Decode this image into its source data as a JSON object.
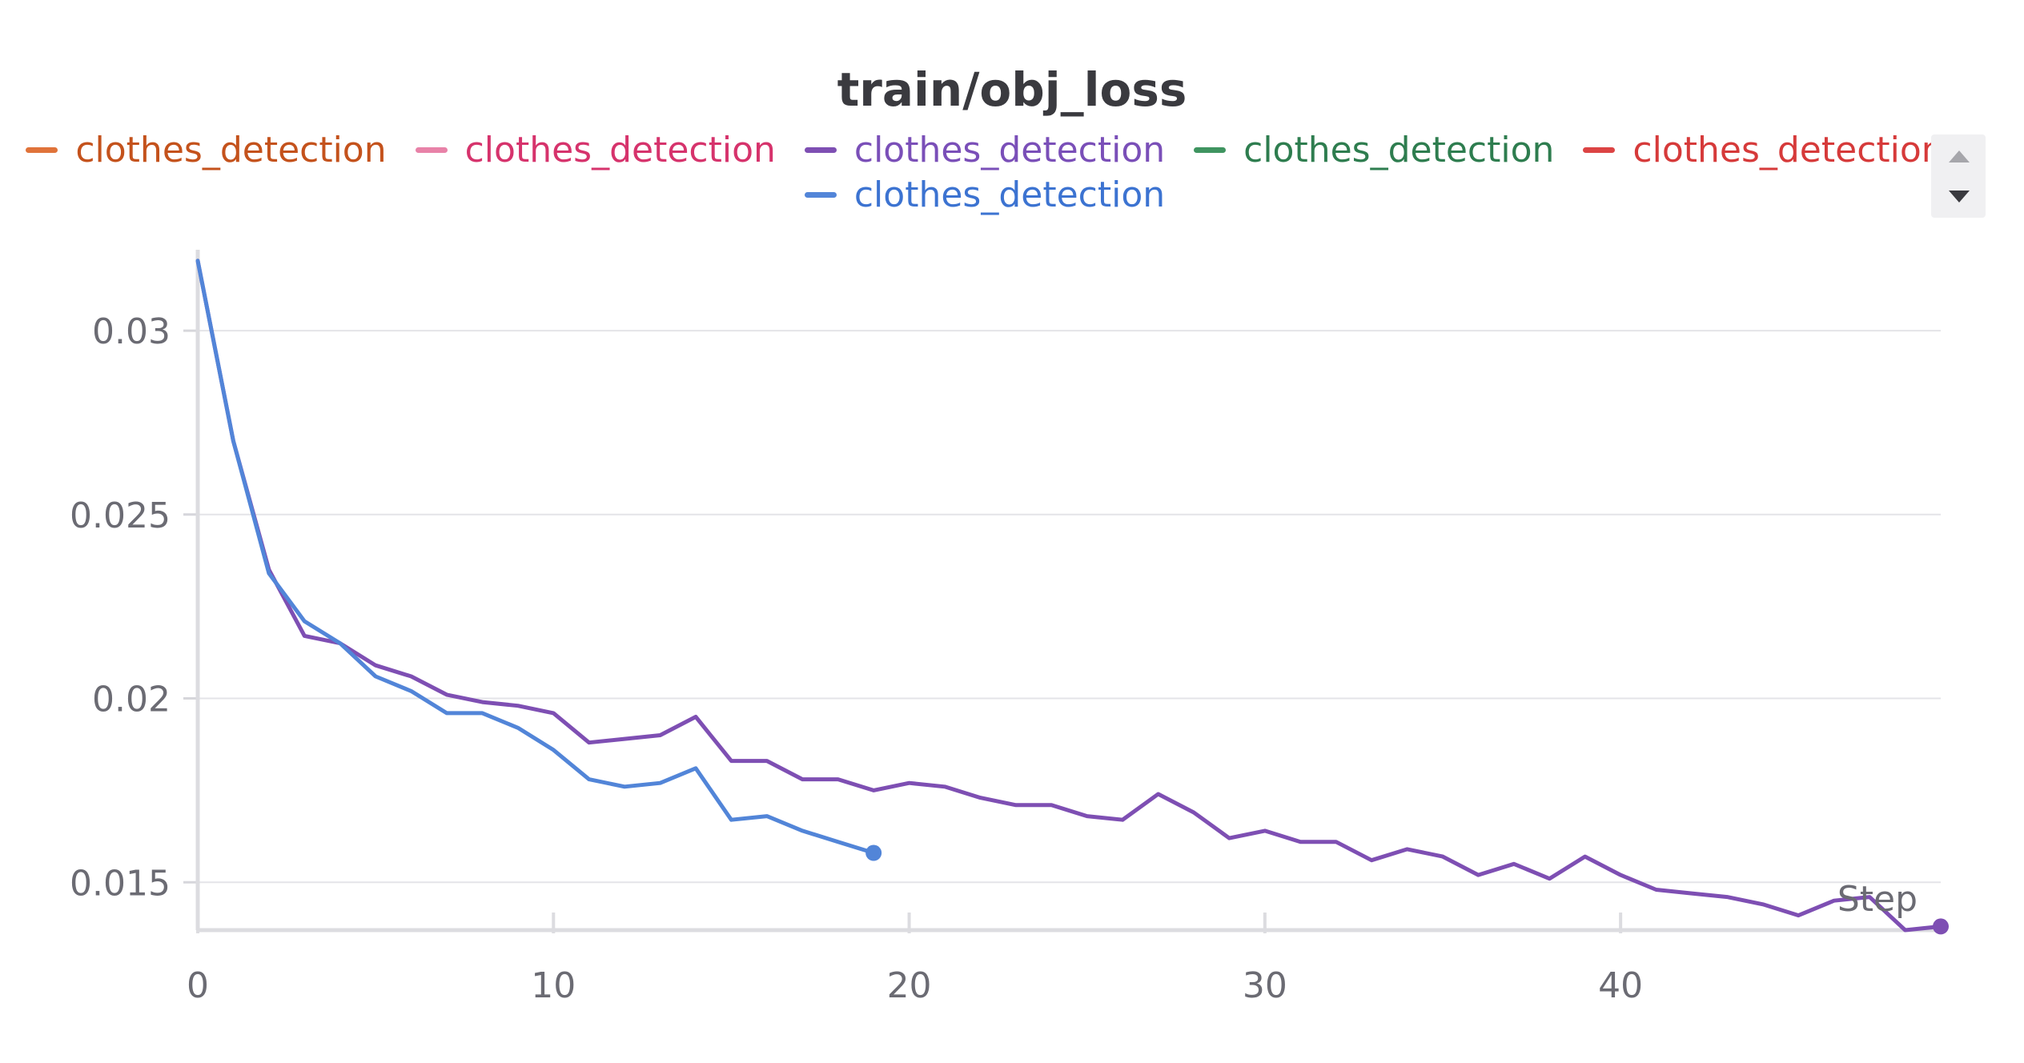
{
  "chart_data": {
    "type": "line",
    "title": "train/obj_loss",
    "xlabel": "Step",
    "ylabel": "",
    "xlim": [
      0,
      49
    ],
    "ylim": [
      0.0137,
      0.0322
    ],
    "x_ticks": [
      0,
      10,
      20,
      30,
      40
    ],
    "y_ticks": [
      0.015,
      0.02,
      0.025,
      0.03
    ],
    "x_tick_labels": [
      "0",
      "10",
      "20",
      "30",
      "40"
    ],
    "y_tick_labels": [
      "0.015",
      "0.02",
      "0.025",
      "0.03"
    ],
    "grid": true,
    "legend_position": "top",
    "legend": [
      {
        "name": "clothes_detection",
        "color": "#e0733a",
        "text_color": "#c4521c"
      },
      {
        "name": "clothes_detection",
        "color": "#e882a8",
        "text_color": "#d6336c"
      },
      {
        "name": "clothes_detection",
        "color": "#7e4fb3",
        "text_color": "#7a4fb8"
      },
      {
        "name": "clothes_detection",
        "color": "#3f9460",
        "text_color": "#2e7d4f"
      },
      {
        "name": "clothes_detection",
        "color": "#dc4444",
        "text_color": "#d63a3a"
      },
      {
        "name": "clothes_detection",
        "color": "#5285d8",
        "text_color": "#3c73d1"
      }
    ],
    "series": [
      {
        "name": "clothes_detection",
        "color": "#7e4fb3",
        "x": [
          0,
          1,
          2,
          3,
          4,
          5,
          6,
          7,
          8,
          9,
          10,
          11,
          12,
          13,
          14,
          15,
          16,
          17,
          18,
          19,
          20,
          21,
          22,
          23,
          24,
          25,
          26,
          27,
          28,
          29,
          30,
          31,
          32,
          33,
          34,
          35,
          36,
          37,
          38,
          39,
          40,
          41,
          42,
          43,
          44,
          45,
          46,
          47,
          48,
          49
        ],
        "y": [
          0.0319,
          0.027,
          0.0235,
          0.0217,
          0.0215,
          0.0209,
          0.0206,
          0.0201,
          0.0199,
          0.0198,
          0.0196,
          0.0188,
          0.0189,
          0.019,
          0.0195,
          0.0183,
          0.0183,
          0.0178,
          0.0178,
          0.0175,
          0.0177,
          0.0176,
          0.0173,
          0.0171,
          0.0171,
          0.0168,
          0.0167,
          0.0174,
          0.0169,
          0.0162,
          0.0164,
          0.0161,
          0.0161,
          0.0156,
          0.0159,
          0.0157,
          0.0152,
          0.0155,
          0.0151,
          0.0157,
          0.0152,
          0.0148,
          0.0147,
          0.0146,
          0.0144,
          0.0141,
          0.0145,
          0.0146,
          0.0137,
          0.0138
        ]
      },
      {
        "name": "clothes_detection",
        "color": "#5285d8",
        "x": [
          0,
          1,
          2,
          3,
          4,
          5,
          6,
          7,
          8,
          9,
          10,
          11,
          12,
          13,
          14,
          15,
          16,
          17,
          18,
          19
        ],
        "y": [
          0.0319,
          0.027,
          0.0234,
          0.0221,
          0.0215,
          0.0206,
          0.0202,
          0.0196,
          0.0196,
          0.0192,
          0.0186,
          0.0178,
          0.0176,
          0.0177,
          0.0181,
          0.0167,
          0.0168,
          0.0164,
          0.0161,
          0.0158
        ]
      }
    ]
  }
}
